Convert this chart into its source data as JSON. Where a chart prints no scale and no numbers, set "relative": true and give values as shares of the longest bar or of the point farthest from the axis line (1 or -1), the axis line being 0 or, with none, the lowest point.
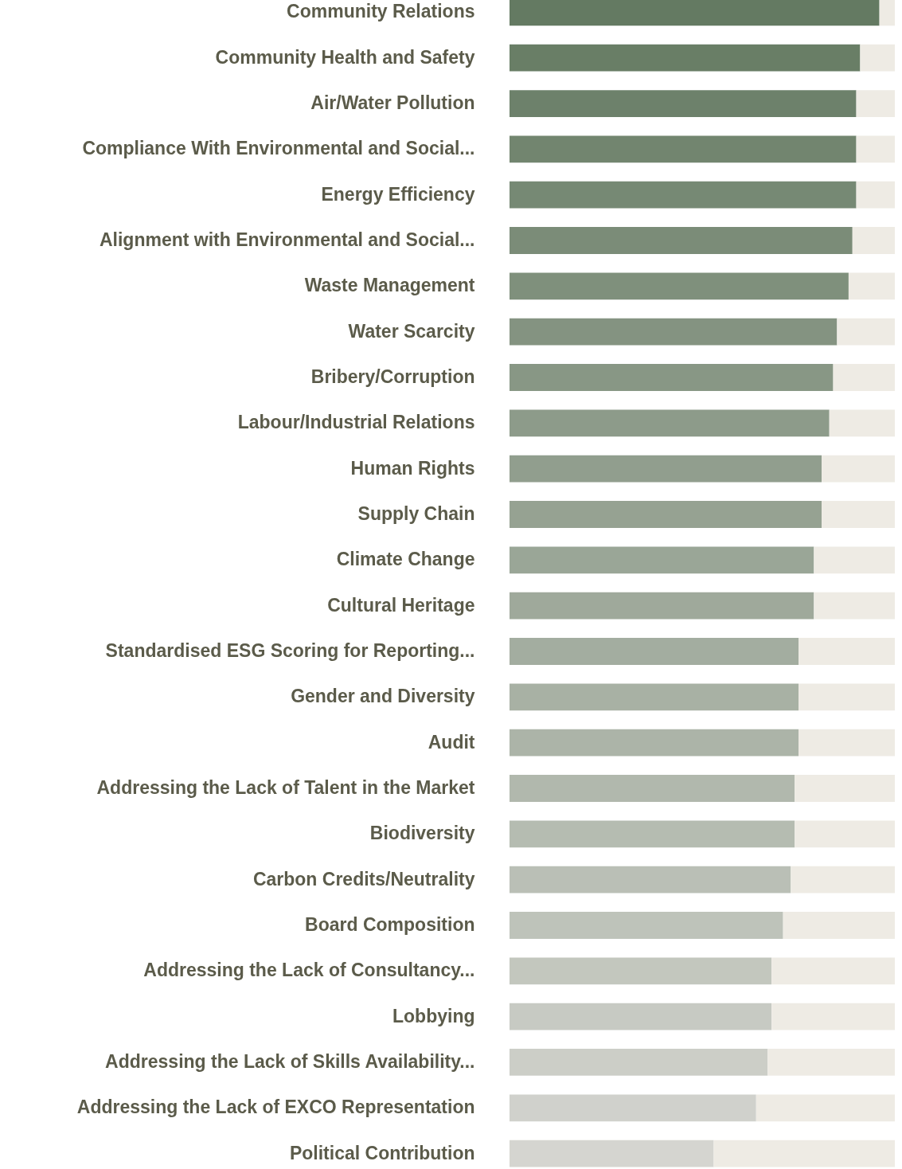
{
  "chart_data": {
    "type": "bar",
    "orientation": "horizontal",
    "stacked": true,
    "relative": true,
    "categories": [
      "Community Relations",
      "Community Health and Safety",
      "Air/Water Pollution",
      "Compliance With Environmental and Social...",
      "Energy Efficiency",
      "Alignment with Environmental and Social...",
      "Waste Management",
      "Water Scarcity",
      "Bribery/Corruption",
      "Labour/Industrial Relations",
      "Human Rights",
      "Supply Chain",
      "Climate Change",
      "Cultural Heritage",
      "Standardised ESG Scoring for Reporting...",
      "Gender and Diversity",
      "Audit",
      "Addressing the Lack of Talent in the Market",
      "Biodiversity",
      "Carbon Credits/Neutrality",
      "Board Composition",
      "Addressing the Lack of Consultancy...",
      "Lobbying",
      "Addressing the Lack of Skills Availability...",
      "Addressing the Lack of EXCO Representation",
      "Political Contribution"
    ],
    "series": [
      {
        "values": [
          0.96,
          0.91,
          0.9,
          0.9,
          0.9,
          0.89,
          0.88,
          0.85,
          0.84,
          0.83,
          0.81,
          0.81,
          0.79,
          0.79,
          0.75,
          0.75,
          0.75,
          0.74,
          0.74,
          0.73,
          0.71,
          0.68,
          0.68,
          0.67,
          0.64,
          0.53
        ],
        "colors": [
          "#647a62",
          "#697e66",
          "#6d816b",
          "#72856f",
          "#768974",
          "#7b8c78",
          "#7f907c",
          "#849381",
          "#889785",
          "#8d9b8a",
          "#919e8e",
          "#96a292",
          "#9aa697",
          "#9fa99b",
          "#a3ada0",
          "#a8b1a4",
          "#acb4a8",
          "#b1b8ad",
          "#b5bcb1",
          "#babfb6",
          "#bec3ba",
          "#c3c7be",
          "#c7cac3",
          "#cccec7",
          "#d0d1cc",
          "#d5d5d0"
        ]
      },
      {
        "values": [
          0.04,
          0.09,
          0.1,
          0.1,
          0.1,
          0.11,
          0.12,
          0.15,
          0.16,
          0.17,
          0.19,
          0.19,
          0.21,
          0.21,
          0.25,
          0.25,
          0.25,
          0.26,
          0.26,
          0.27,
          0.29,
          0.32,
          0.32,
          0.33,
          0.36,
          0.47
        ],
        "color": "#eeebe4"
      }
    ]
  }
}
